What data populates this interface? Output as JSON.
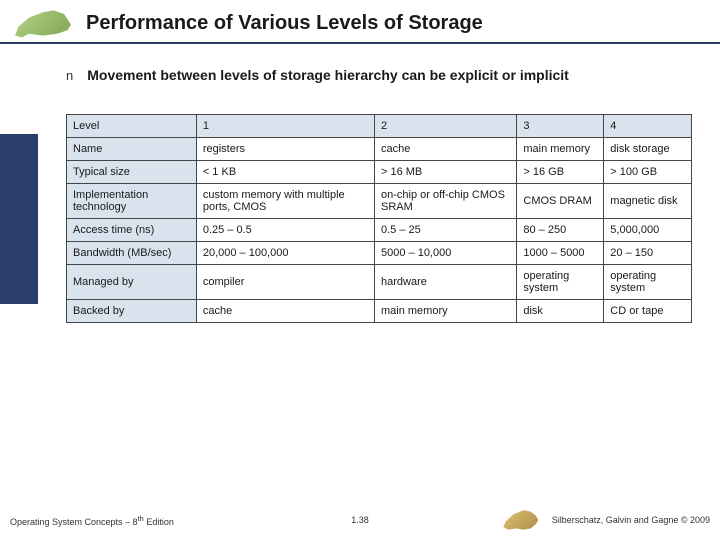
{
  "header": {
    "title": "Performance of Various Levels of Storage",
    "underline_color": "#2b3e6b"
  },
  "bullet": {
    "marker": "n",
    "text": "Movement between levels of storage hierarchy can be explicit or implicit"
  },
  "table": {
    "header_bg": "#d8e3ed",
    "border_color": "#444444",
    "columns": [
      "Level",
      "1",
      "2",
      "3",
      "4"
    ],
    "rows": [
      [
        "Name",
        "registers",
        "cache",
        "main memory",
        "disk storage"
      ],
      [
        "Typical size",
        "< 1 KB",
        "> 16 MB",
        "> 16 GB",
        "> 100 GB"
      ],
      [
        "Implementation technology",
        "custom memory with multiple ports, CMOS",
        "on-chip or off-chip CMOS SRAM",
        "CMOS DRAM",
        "magnetic disk"
      ],
      [
        "Access time (ns)",
        "0.25 – 0.5",
        "0.5 – 25",
        "80 – 250",
        "5,000,000"
      ],
      [
        "Bandwidth (MB/sec)",
        "20,000 – 100,000",
        "5000 – 10,000",
        "1000 – 5000",
        "20 – 150"
      ],
      [
        "Managed by",
        "compiler",
        "hardware",
        "operating system",
        "operating system"
      ],
      [
        "Backed by",
        "cache",
        "main memory",
        "disk",
        "CD or tape"
      ]
    ]
  },
  "footer": {
    "left": "Operating System Concepts – 8",
    "left_sup": "th",
    "left_tail": " Edition",
    "mid": "1.38",
    "right": "Silberschatz, Galvin and Gagne © 2009"
  },
  "sidebar": {
    "stripe_color": "#2b3e6b"
  }
}
